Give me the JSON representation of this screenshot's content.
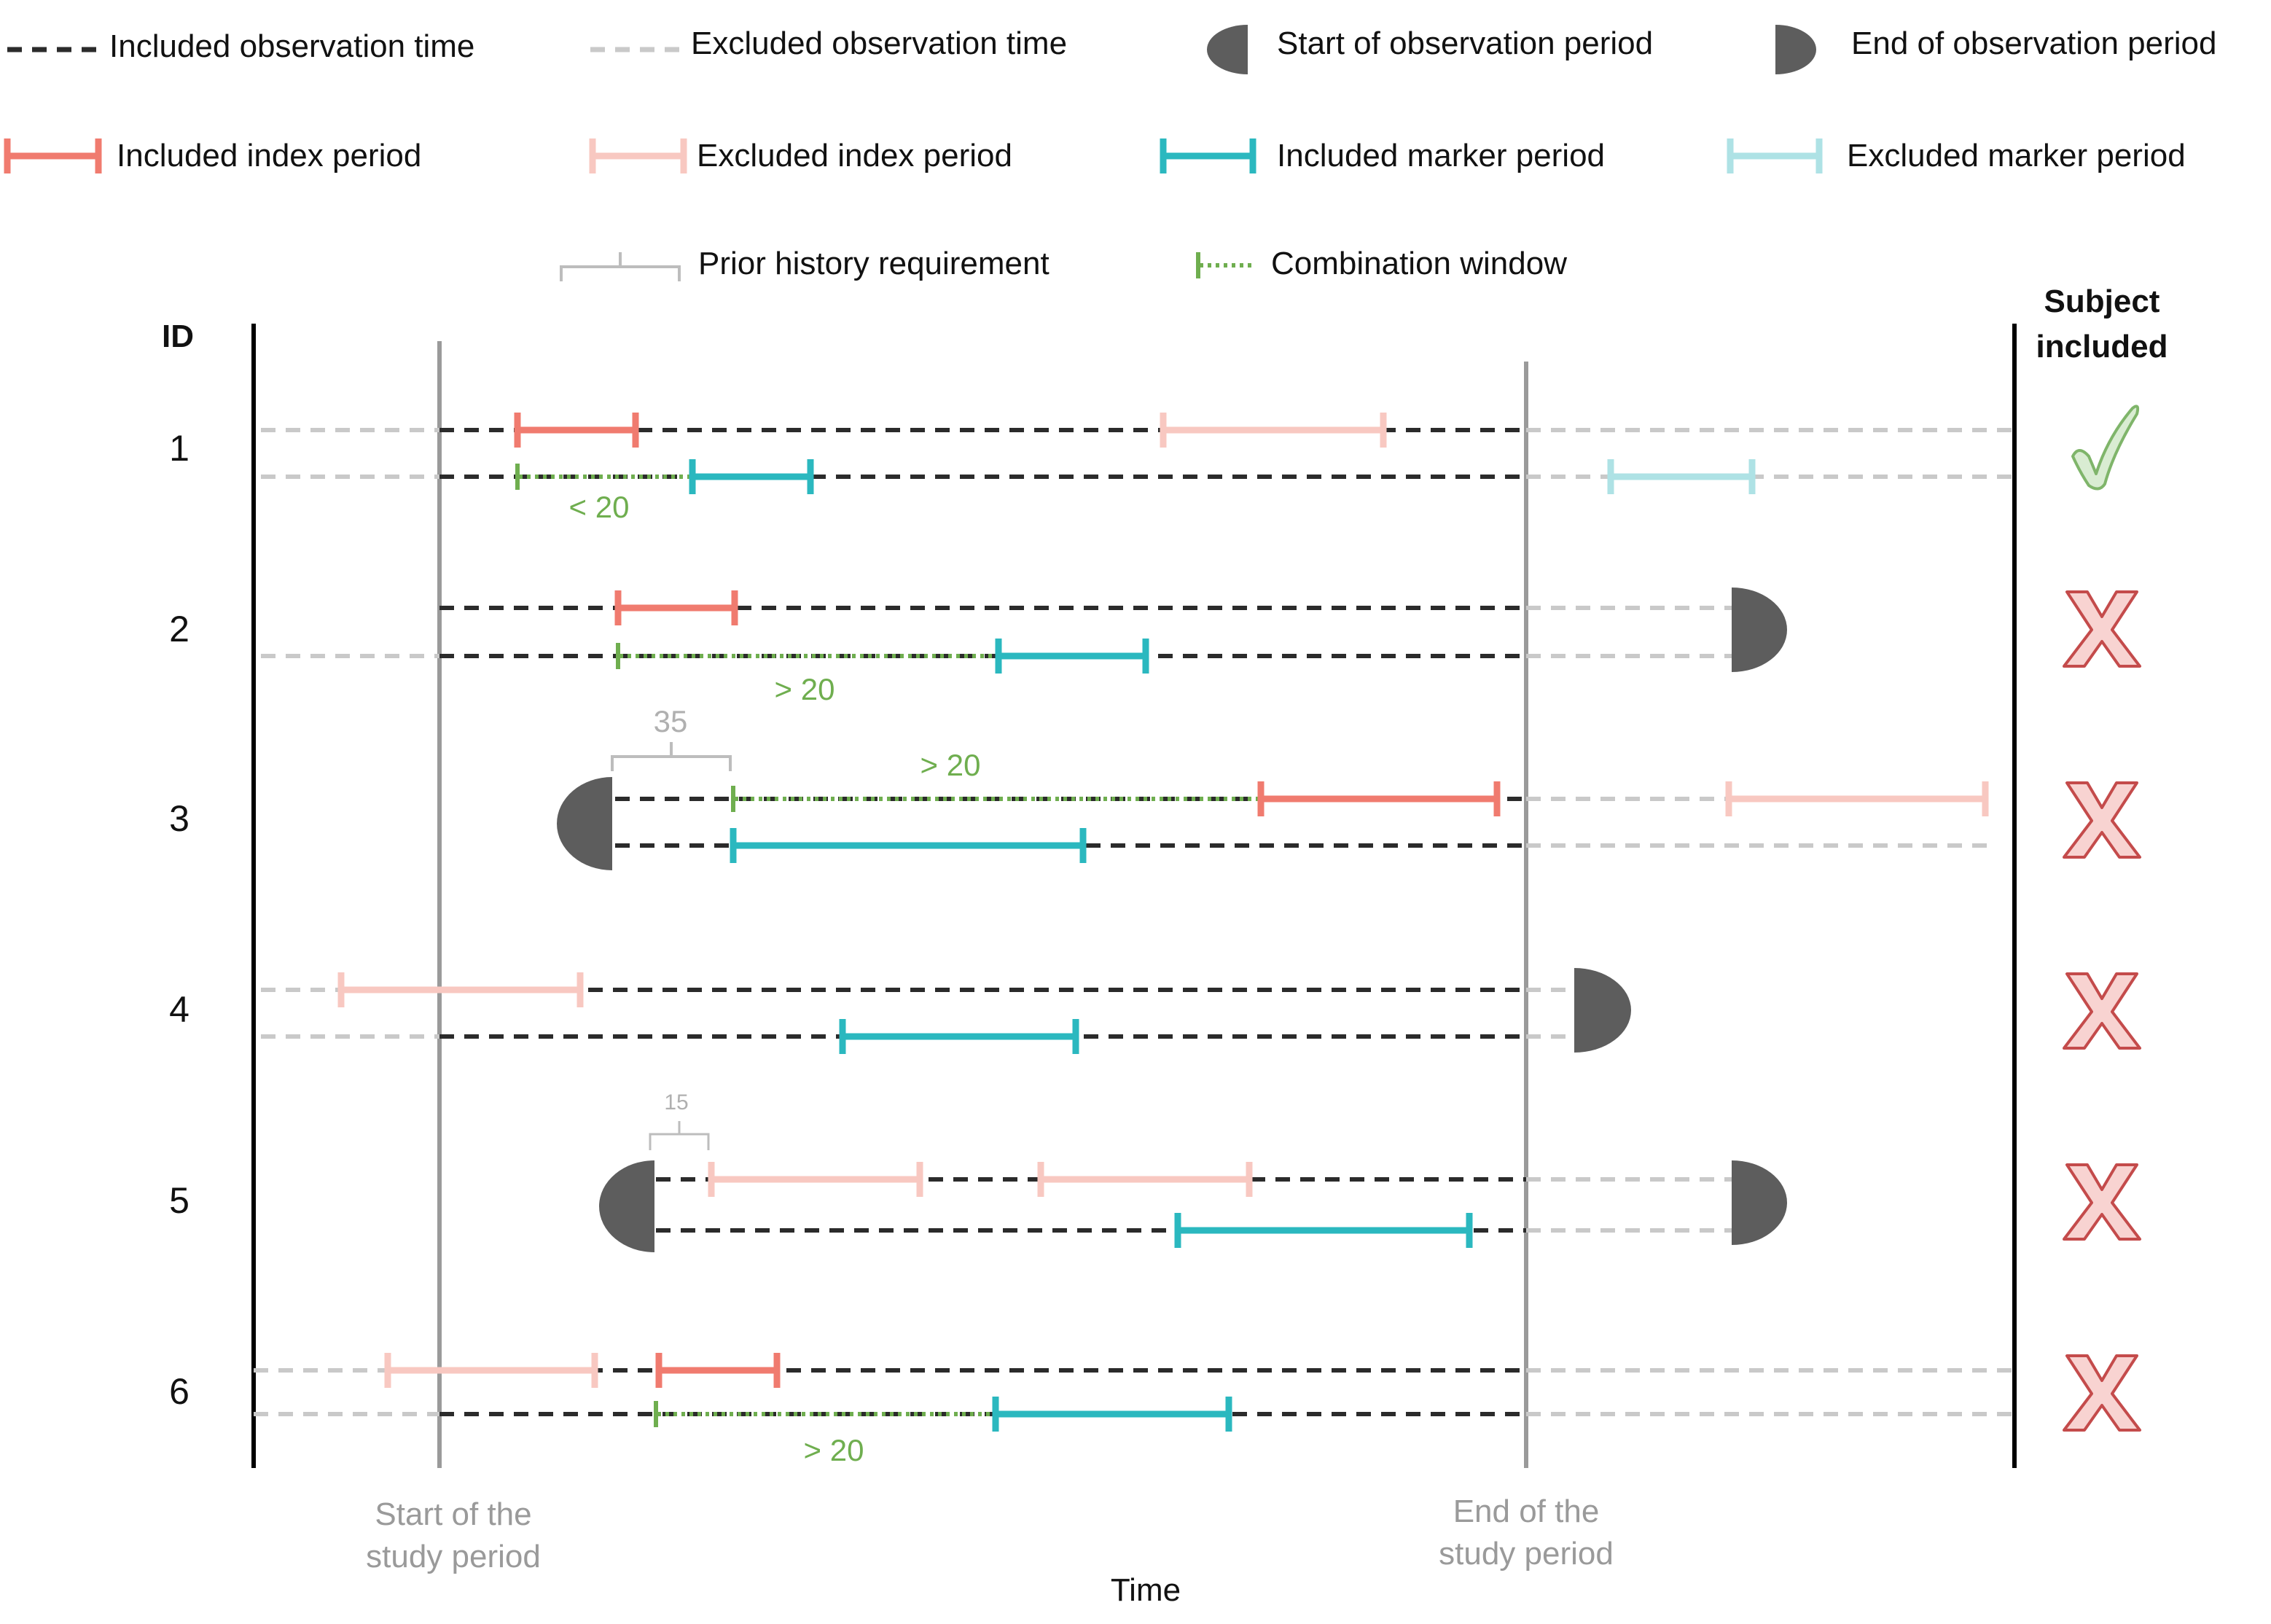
{
  "legend": {
    "included_observation_time": "Included observation time",
    "excluded_observation_time": "Excluded observation time",
    "start_of_observation_period": "Start of observation period",
    "end_of_observation_period": "End of observation period",
    "included_index_period": "Included index period",
    "excluded_index_period": "Excluded index period",
    "included_marker_period": "Included marker period",
    "excluded_marker_period": "Excluded marker period",
    "prior_history_requirement": "Prior history requirement",
    "combination_window": "Combination window"
  },
  "header": {
    "id_label": "ID",
    "subject_included_line1": "Subject",
    "subject_included_line2": "included"
  },
  "axis": {
    "x_label": "Time",
    "study_start_line1": "Start of the",
    "study_start_line2": "study period",
    "study_end_line1": "End of the",
    "study_end_line2": "study period"
  },
  "subjects": [
    {
      "id": "1",
      "included": true,
      "annotations": [
        "< 20"
      ]
    },
    {
      "id": "2",
      "included": false,
      "annotations": [
        "> 20"
      ]
    },
    {
      "id": "3",
      "included": false,
      "annotations": [
        "35",
        "> 20"
      ]
    },
    {
      "id": "4",
      "included": false,
      "annotations": []
    },
    {
      "id": "5",
      "included": false,
      "annotations": [
        "15"
      ]
    },
    {
      "id": "6",
      "included": false,
      "annotations": [
        "> 20"
      ]
    }
  ],
  "colors": {
    "included_observation": "#2b2b2b",
    "excluded_observation": "#c9c9c9",
    "included_index": "#f07b6f",
    "excluded_index": "#f8c8c1",
    "included_marker": "#2bb8bf",
    "excluded_marker": "#aee2e5",
    "combination_window": "#6fae4f",
    "prior_history": "#bdbdbd",
    "observation_cap": "#5d5d5d",
    "study_line": "#9a9a9a",
    "check_fill": "#d9ecd2",
    "check_stroke": "#7fb56a",
    "cross_fill": "#f8d3d1",
    "cross_stroke": "#c44b4b",
    "annotation_grey": "#b0b0b0"
  }
}
